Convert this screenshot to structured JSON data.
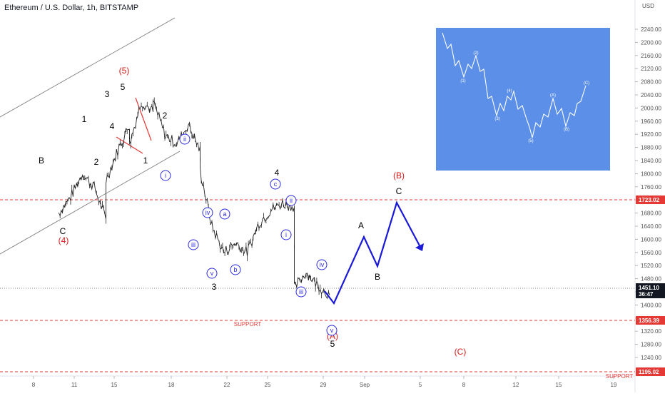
{
  "header": {
    "title": "Ethereum / U.S. Dollar, 1h, BITSTAMP",
    "currency": "USD"
  },
  "chart_data": {
    "type": "candlestick",
    "title": "Ethereum / U.S. Dollar, 1h, BITSTAMP",
    "ylabel": "USD",
    "ylim": [
      1180,
      2300
    ],
    "y_ticks": [
      "1240.00",
      "1280.00",
      "1320.00",
      "1360.00",
      "1400.00",
      "1440.00",
      "1480.00",
      "1520.00",
      "1560.00",
      "1600.00",
      "1640.00",
      "1680.00",
      "1720.00",
      "1760.00",
      "1800.00",
      "1840.00",
      "1880.00",
      "1920.00",
      "1960.00",
      "2000.00",
      "2040.00",
      "2080.00",
      "2120.00",
      "2160.00",
      "2200.00",
      "2240.00"
    ],
    "x_ticks": [
      "8",
      "11",
      "15",
      "18",
      "22",
      "25",
      "29",
      "Sep",
      "5",
      "8",
      "12",
      "15",
      "19"
    ],
    "price_path": [
      [
        "Aug 6",
        1680
      ],
      [
        "Aug 7",
        1730
      ],
      [
        "Aug 8",
        1800
      ],
      [
        "Aug 9",
        1760
      ],
      [
        "Aug 10",
        1660
      ],
      [
        "Aug 10",
        1780
      ],
      [
        "Aug 11",
        1870
      ],
      [
        "Aug 12",
        1950
      ],
      [
        "Aug 12",
        1890
      ],
      [
        "Aug 13",
        2020
      ],
      [
        "Aug 14",
        1990
      ],
      [
        "Aug 14",
        2020
      ],
      [
        "Aug 15",
        1920
      ],
      [
        "Aug 16",
        1890
      ],
      [
        "Aug 17",
        1950
      ],
      [
        "Aug 18",
        1870
      ],
      [
        "Aug 18",
        1810
      ],
      [
        "Aug 19",
        1640
      ],
      [
        "Aug 20",
        1560
      ],
      [
        "Aug 21",
        1590
      ],
      [
        "Aug 22",
        1560
      ],
      [
        "Aug 23",
        1650
      ],
      [
        "Aug 24",
        1690
      ],
      [
        "Aug 25",
        1710
      ],
      [
        "Aug 26",
        1700
      ],
      [
        "Aug 26",
        1450
      ],
      [
        "Aug 27",
        1500
      ],
      [
        "Aug 28",
        1460
      ],
      [
        "Aug 29",
        1430
      ]
    ],
    "current_price": "1451.10",
    "countdown": "36:47",
    "levels": [
      {
        "label": "",
        "value": "1723.02",
        "color": "#e53935"
      },
      {
        "label": "SUPPORT",
        "value": "1356.39",
        "color": "#e53935"
      },
      {
        "label": "SUPPORT",
        "value": "1195.02",
        "color": "#e53935"
      }
    ],
    "projection": [
      [
        "Aug 30",
        1400
      ],
      [
        "Sep 1",
        1605
      ],
      [
        "Sep 2",
        1510
      ],
      [
        "Sep 3",
        1715
      ],
      [
        "Sep 5",
        1580
      ]
    ],
    "wave_labels": [
      {
        "text": "B",
        "color": "#000000"
      },
      {
        "text": "C",
        "color": "#000000"
      },
      {
        "text": "(4)",
        "color": "#d81b1b"
      },
      {
        "text": "1",
        "color": "#000000"
      },
      {
        "text": "2",
        "color": "#000000"
      },
      {
        "text": "3",
        "color": "#000000"
      },
      {
        "text": "4",
        "color": "#000000"
      },
      {
        "text": "5",
        "color": "#000000"
      },
      {
        "text": "(5)",
        "color": "#d81b1b"
      },
      {
        "text": "1",
        "color": "#000000"
      },
      {
        "text": "2",
        "color": "#000000"
      },
      {
        "text": "3",
        "color": "#000000"
      },
      {
        "text": "4",
        "color": "#000000"
      },
      {
        "text": "5",
        "color": "#000000"
      },
      {
        "text": "(A)",
        "color": "#d81b1b"
      },
      {
        "text": "A",
        "color": "#000000"
      },
      {
        "text": "B",
        "color": "#000000"
      },
      {
        "text": "C",
        "color": "#000000"
      },
      {
        "text": "(B)",
        "color": "#d81b1b"
      },
      {
        "text": "(C)",
        "color": "#d81b1b"
      }
    ],
    "circle_labels": [
      "i",
      "ii",
      "iii",
      "iv",
      "v",
      "a",
      "b",
      "c",
      "i",
      "ii",
      "iii",
      "iv",
      "v"
    ],
    "inset_labels": [
      "(1)",
      "(2)",
      "(3)",
      "(4)",
      "(5)",
      "(A)",
      "(B)",
      "(C)"
    ],
    "inset_color": "#5b8fe8"
  }
}
